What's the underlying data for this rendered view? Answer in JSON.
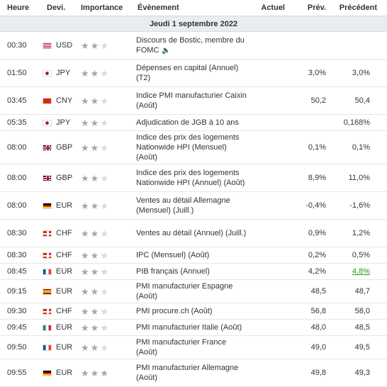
{
  "header": {
    "time": "Heure",
    "currency": "Devi.",
    "importance": "Importance",
    "event": "Évènement",
    "actual": "Actuel",
    "forecast": "Prév.",
    "previous": "Précédent"
  },
  "date_label": "Jeudi 1 septembre 2022",
  "colors": {
    "green": "#14a014",
    "star_on": "#a6a6a6",
    "star_off": "#d9d9d9"
  },
  "rows": [
    {
      "time": "00:30",
      "flag": "us",
      "currency": "USD",
      "stars": 2,
      "event": "Discours de Bostic, membre du FOMC",
      "actual": "",
      "forecast": "",
      "previous": "",
      "speaker": "speaker-icon"
    },
    {
      "time": "01:50",
      "flag": "jp",
      "currency": "JPY",
      "stars": 2,
      "event": "Dépenses en capital (Annuel) (T2)",
      "actual": "",
      "forecast": "3,0%",
      "previous": "3,0%"
    },
    {
      "time": "03:45",
      "flag": "cn",
      "currency": "CNY",
      "stars": 2,
      "event": "Indice PMI manufacturier Caixin (Août)",
      "actual": "",
      "forecast": "50,2",
      "previous": "50,4"
    },
    {
      "time": "05:35",
      "flag": "jp",
      "currency": "JPY",
      "stars": 2,
      "event": "Adjudication de JGB à 10 ans",
      "actual": "",
      "forecast": "",
      "previous": "0,168%"
    },
    {
      "time": "08:00",
      "flag": "gb",
      "currency": "GBP",
      "stars": 2,
      "event": "Indice des prix des logements Nationwide HPI (Mensuel) (Août)",
      "actual": "",
      "forecast": "0,1%",
      "previous": "0,1%"
    },
    {
      "time": "08:00",
      "flag": "gb",
      "currency": "GBP",
      "stars": 2,
      "event": "Indice des prix des logements Nationwide HPI (Annuel) (Août)",
      "actual": "",
      "forecast": "8,9%",
      "previous": "11,0%"
    },
    {
      "time": "08:00",
      "flag": "de",
      "currency": "EUR",
      "stars": 2,
      "event": "Ventes au détail Allemagne (Mensuel) (Juill.)",
      "actual": "",
      "forecast": "-0,4%",
      "previous": "-1,6%"
    },
    {
      "time": "08:30",
      "flag": "ch",
      "currency": "CHF",
      "stars": 2,
      "event": "Ventes au détail (Annuel) (Juill.)",
      "actual": "",
      "forecast": "0,9%",
      "previous": "1,2%"
    },
    {
      "time": "08:30",
      "flag": "ch",
      "currency": "CHF",
      "stars": 2,
      "event": "IPC (Mensuel) (Août)",
      "actual": "",
      "forecast": "0,2%",
      "previous": "0,5%"
    },
    {
      "time": "08:45",
      "flag": "fr",
      "currency": "EUR",
      "stars": 2,
      "event": "PIB français (Annuel)",
      "actual": "",
      "forecast": "4,2%",
      "previous": "4,8%",
      "previous_green": true
    },
    {
      "time": "09:15",
      "flag": "es",
      "currency": "EUR",
      "stars": 2,
      "event": "PMI manufacturier Espagne (Août)",
      "actual": "",
      "forecast": "48,5",
      "previous": "48,7"
    },
    {
      "time": "09:30",
      "flag": "ch",
      "currency": "CHF",
      "stars": 2,
      "event": "PMI procure.ch (Août)",
      "actual": "",
      "forecast": "56,8",
      "previous": "58,0"
    },
    {
      "time": "09:45",
      "flag": "it",
      "currency": "EUR",
      "stars": 2,
      "event": "PMI manufacturier Italie (Août)",
      "actual": "",
      "forecast": "48,0",
      "previous": "48,5"
    },
    {
      "time": "09:50",
      "flag": "fr",
      "currency": "EUR",
      "stars": 2,
      "event": "PMI manufacturier France (Août)",
      "actual": "",
      "forecast": "49,0",
      "previous": "49,5"
    },
    {
      "time": "09:55",
      "flag": "de",
      "currency": "EUR",
      "stars": 3,
      "event": "PMI manufacturier Allemagne (Août)",
      "actual": "",
      "forecast": "49,8",
      "previous": "49,3"
    }
  ]
}
